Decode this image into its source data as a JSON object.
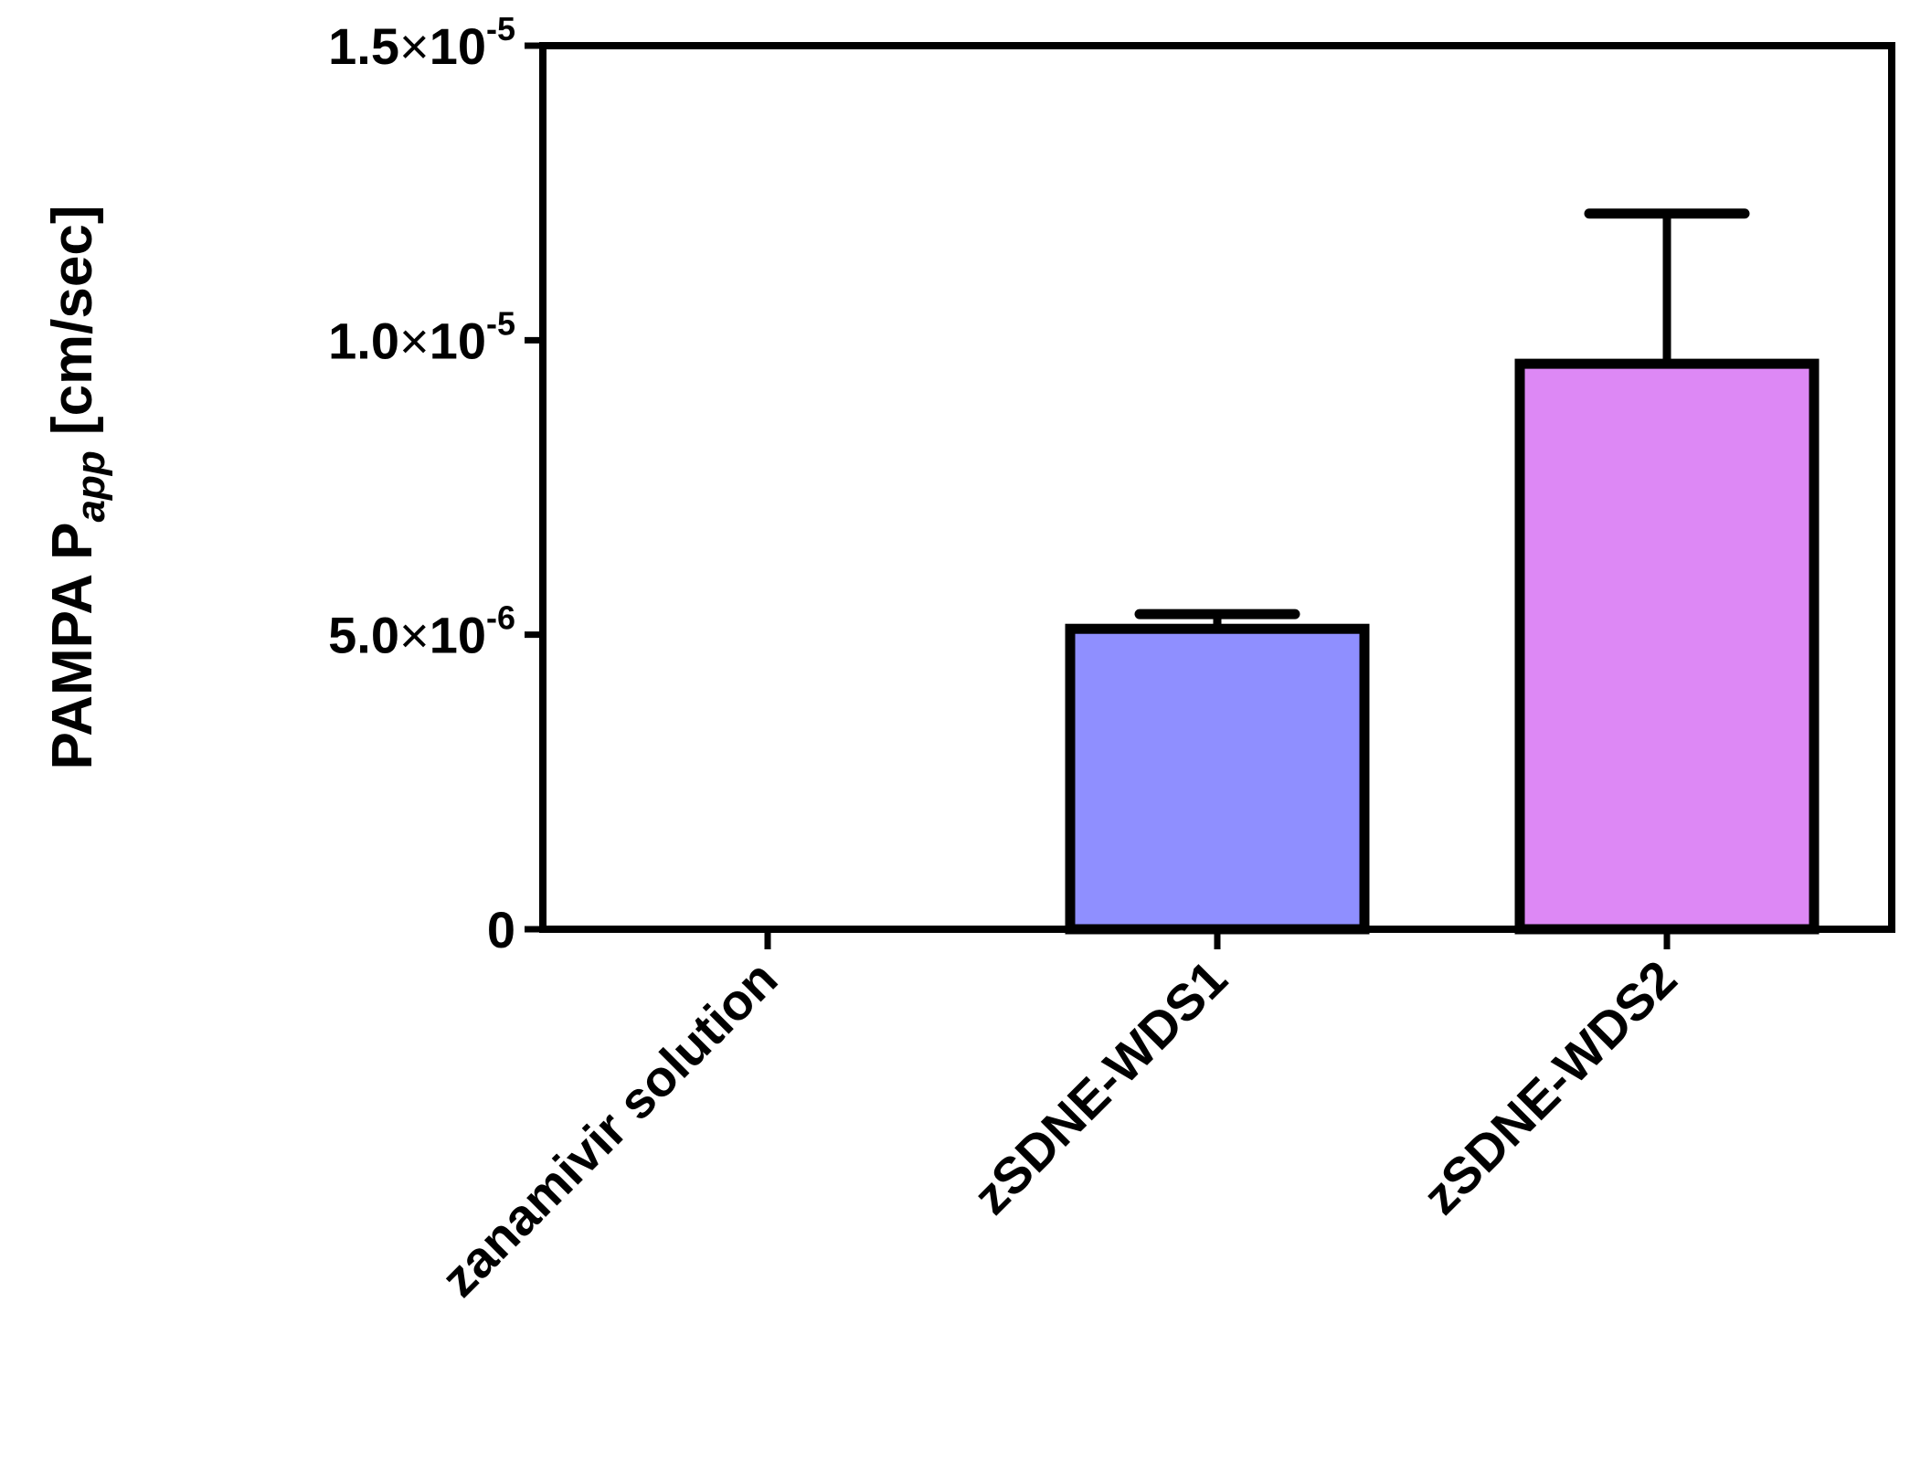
{
  "chart_data": {
    "type": "bar",
    "categories": [
      "zanamivir solution",
      "zSDNE-WDS1",
      "zSDNE-WDS2"
    ],
    "values": [
      0,
      5.1e-06,
      9.6e-06
    ],
    "error_plus": [
      0,
      2.5e-07,
      2.55e-06
    ],
    "colors": [
      "#ffffff",
      "#8f8fff",
      "#dd88f5"
    ],
    "ylabel": {
      "prefix": "PAMPA P",
      "subscript": "app",
      "suffix": " [cm/sec]"
    },
    "ylim": [
      0,
      1.5e-05
    ],
    "y_ticks": [
      {
        "value": 0,
        "mantissa": "0",
        "times": "",
        "base": "",
        "exponent": ""
      },
      {
        "value": 5e-06,
        "mantissa": "5.0",
        "times": "×",
        "base": "10",
        "exponent": "-6"
      },
      {
        "value": 1e-05,
        "mantissa": "1.0",
        "times": "×",
        "base": "10",
        "exponent": "-5"
      },
      {
        "value": 1.5e-05,
        "mantissa": "1.5",
        "times": "×",
        "base": "10",
        "exponent": "-5"
      }
    ],
    "grid": false,
    "legend": "none"
  }
}
